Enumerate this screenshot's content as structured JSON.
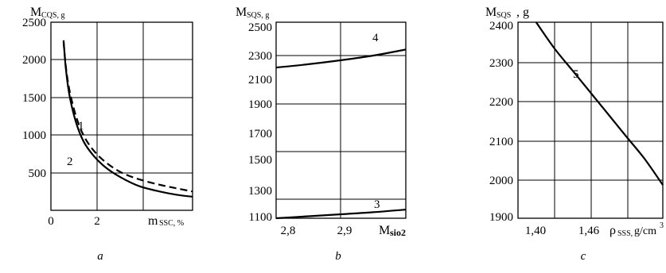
{
  "chart_data": [
    {
      "type": "line",
      "sublabel": "a",
      "ylabel_main": "M",
      "ylabel_sub": "CQS, g",
      "xlabel_main": "m",
      "xlabel_sub": "SSC, %",
      "xticks": [
        "0",
        "2"
      ],
      "yticks": [
        "500",
        "1000",
        "1500",
        "2000",
        "2500"
      ],
      "xlim": [
        0,
        5.6
      ],
      "ylim": [
        0,
        2500
      ],
      "series": [
        {
          "name": "1",
          "style": "dashed",
          "x": [
            0.5,
            0.6,
            0.75,
            1.0,
            1.3,
            1.7,
            2.2,
            2.8,
            3.5,
            4.3,
            5.0,
            5.6
          ],
          "y": [
            2240,
            1880,
            1570,
            1240,
            990,
            790,
            630,
            500,
            410,
            340,
            290,
            250
          ]
        },
        {
          "name": "2",
          "style": "solid",
          "x": [
            0.5,
            0.6,
            0.75,
            1.0,
            1.3,
            1.7,
            2.2,
            2.8,
            3.5,
            4.3,
            5.0,
            5.6
          ],
          "y": [
            2260,
            1850,
            1500,
            1160,
            910,
            720,
            560,
            430,
            320,
            250,
            205,
            180
          ]
        }
      ],
      "labels": [
        "1",
        "2"
      ]
    },
    {
      "type": "line",
      "sublabel": "b",
      "ylabel_main": "M",
      "ylabel_sub": "SQS, g",
      "xlabel_main": "M",
      "xlabel_sub": "sio2",
      "xticks": [
        "2,8",
        "2,9"
      ],
      "yticks": [
        "1100",
        "1300",
        "1500",
        "1700",
        "1900",
        "2100",
        "2300",
        "2500"
      ],
      "xlim": [
        2.8,
        3.0
      ],
      "ylim": [
        1080,
        2550
      ],
      "series": [
        {
          "name": "4",
          "x": [
            2.8,
            2.85,
            2.9,
            2.95,
            3.0
          ],
          "y": [
            2210,
            2235,
            2265,
            2300,
            2345
          ]
        },
        {
          "name": "3",
          "x": [
            2.8,
            2.85,
            2.9,
            2.95,
            3.0
          ],
          "y": [
            1080,
            1095,
            1110,
            1125,
            1145
          ]
        }
      ],
      "labels": [
        "4",
        "3"
      ]
    },
    {
      "type": "line",
      "sublabel": "c",
      "ylabel_main": "M",
      "ylabel_sub": "SQS",
      "ylabel_unit": ", g",
      "xlabel_main": "ρ",
      "xlabel_sub": "SSS, ",
      "xlabel_unit": "g/cm",
      "xlabel_sup": "3",
      "xticks": [
        "1,40",
        "1,46"
      ],
      "yticks": [
        "1900",
        "2000",
        "2100",
        "2200",
        "2300",
        "2400"
      ],
      "xlim": [
        1.38,
        1.54
      ],
      "ylim": [
        1890,
        2420
      ],
      "series": [
        {
          "name": "5",
          "x": [
            1.4,
            1.42,
            1.44,
            1.46,
            1.48,
            1.5,
            1.52,
            1.54
          ],
          "y": [
            2420,
            2350,
            2290,
            2230,
            2170,
            2110,
            2050,
            1980
          ]
        }
      ],
      "labels": [
        "5"
      ]
    }
  ]
}
